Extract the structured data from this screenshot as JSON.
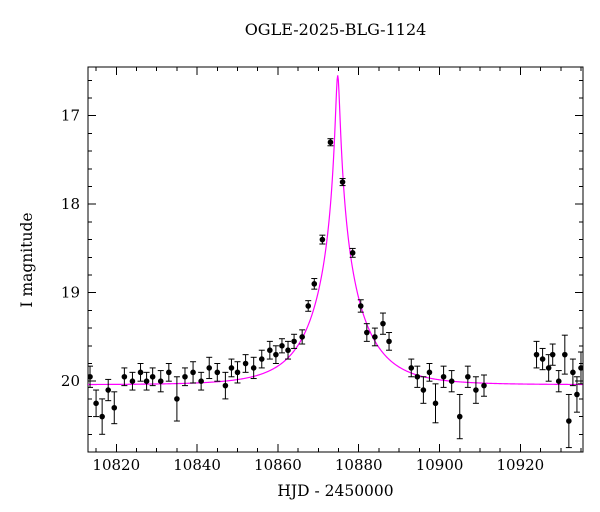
{
  "chart_data": {
    "type": "scatter",
    "title": "OGLE-2025-BLG-1124",
    "xlabel": "HJD - 2450000",
    "ylabel": "I magnitude",
    "xlim": [
      10813,
      10935.5
    ],
    "ylim": [
      16.45,
      20.8
    ],
    "y_axis_inverted_magnitude": true,
    "xticks": [
      10820,
      10840,
      10860,
      10880,
      10900,
      10920
    ],
    "yticks": [
      17,
      18,
      19,
      20
    ],
    "x_minor_step": 5,
    "y_minor_step": 0.2,
    "grid": false,
    "legend": "none",
    "colors": {
      "curve": "#ff00ff",
      "points": "#000000",
      "frame": "#000000"
    },
    "model": {
      "kind": "paczynski-microlensing",
      "t0": 10874.8,
      "tE": 12,
      "u0": 0.04,
      "baseline_mag": 20.04
    },
    "points": [
      [
        10813.5,
        19.95,
        0.12
      ],
      [
        10815.0,
        20.25,
        0.15
      ],
      [
        10816.5,
        20.4,
        0.2
      ],
      [
        10818.0,
        20.1,
        0.12
      ],
      [
        10819.5,
        20.3,
        0.18
      ],
      [
        10822.0,
        19.95,
        0.1
      ],
      [
        10824.0,
        20.0,
        0.1
      ],
      [
        10826.0,
        19.9,
        0.1
      ],
      [
        10827.5,
        20.0,
        0.1
      ],
      [
        10829.0,
        19.95,
        0.1
      ],
      [
        10831.0,
        20.0,
        0.12
      ],
      [
        10833.0,
        19.9,
        0.1
      ],
      [
        10835.0,
        20.2,
        0.25
      ],
      [
        10837.0,
        19.95,
        0.1
      ],
      [
        10839.0,
        19.9,
        0.12
      ],
      [
        10841.0,
        20.0,
        0.1
      ],
      [
        10843.0,
        19.85,
        0.12
      ],
      [
        10845.0,
        19.9,
        0.1
      ],
      [
        10847.0,
        20.05,
        0.15
      ],
      [
        10848.5,
        19.85,
        0.1
      ],
      [
        10850.0,
        19.9,
        0.12
      ],
      [
        10852.0,
        19.8,
        0.1
      ],
      [
        10854.0,
        19.85,
        0.12
      ],
      [
        10856.0,
        19.75,
        0.1
      ],
      [
        10858.0,
        19.65,
        0.1
      ],
      [
        10859.5,
        19.7,
        0.1
      ],
      [
        10861.0,
        19.6,
        0.08
      ],
      [
        10862.5,
        19.65,
        0.1
      ],
      [
        10864.0,
        19.55,
        0.08
      ],
      [
        10866.0,
        19.5,
        0.08
      ],
      [
        10867.5,
        19.15,
        0.06
      ],
      [
        10869.0,
        18.9,
        0.06
      ],
      [
        10871.0,
        18.4,
        0.05
      ],
      [
        10873.0,
        17.3,
        0.04
      ],
      [
        10876.0,
        17.75,
        0.04
      ],
      [
        10878.5,
        18.55,
        0.05
      ],
      [
        10880.5,
        19.15,
        0.07
      ],
      [
        10882.0,
        19.45,
        0.1
      ],
      [
        10884.0,
        19.5,
        0.1
      ],
      [
        10886.0,
        19.35,
        0.12
      ],
      [
        10887.5,
        19.55,
        0.1
      ],
      [
        10893.0,
        19.85,
        0.1
      ],
      [
        10894.5,
        19.95,
        0.12
      ],
      [
        10896.0,
        20.1,
        0.15
      ],
      [
        10897.5,
        19.9,
        0.1
      ],
      [
        10899.0,
        20.25,
        0.22
      ],
      [
        10901.0,
        19.95,
        0.12
      ],
      [
        10903.0,
        20.0,
        0.12
      ],
      [
        10905.0,
        20.4,
        0.25
      ],
      [
        10907.0,
        19.95,
        0.12
      ],
      [
        10909.0,
        20.1,
        0.15
      ],
      [
        10911.0,
        20.05,
        0.12
      ],
      [
        10924.0,
        19.7,
        0.15
      ],
      [
        10925.5,
        19.75,
        0.12
      ],
      [
        10927.0,
        19.85,
        0.15
      ],
      [
        10928.0,
        19.7,
        0.12
      ],
      [
        10929.5,
        20.0,
        0.12
      ],
      [
        10931.0,
        19.7,
        0.22
      ],
      [
        10932.0,
        20.45,
        0.3
      ],
      [
        10933.0,
        19.9,
        0.15
      ],
      [
        10934.0,
        20.15,
        0.2
      ],
      [
        10935.0,
        19.85,
        0.18
      ]
    ]
  }
}
